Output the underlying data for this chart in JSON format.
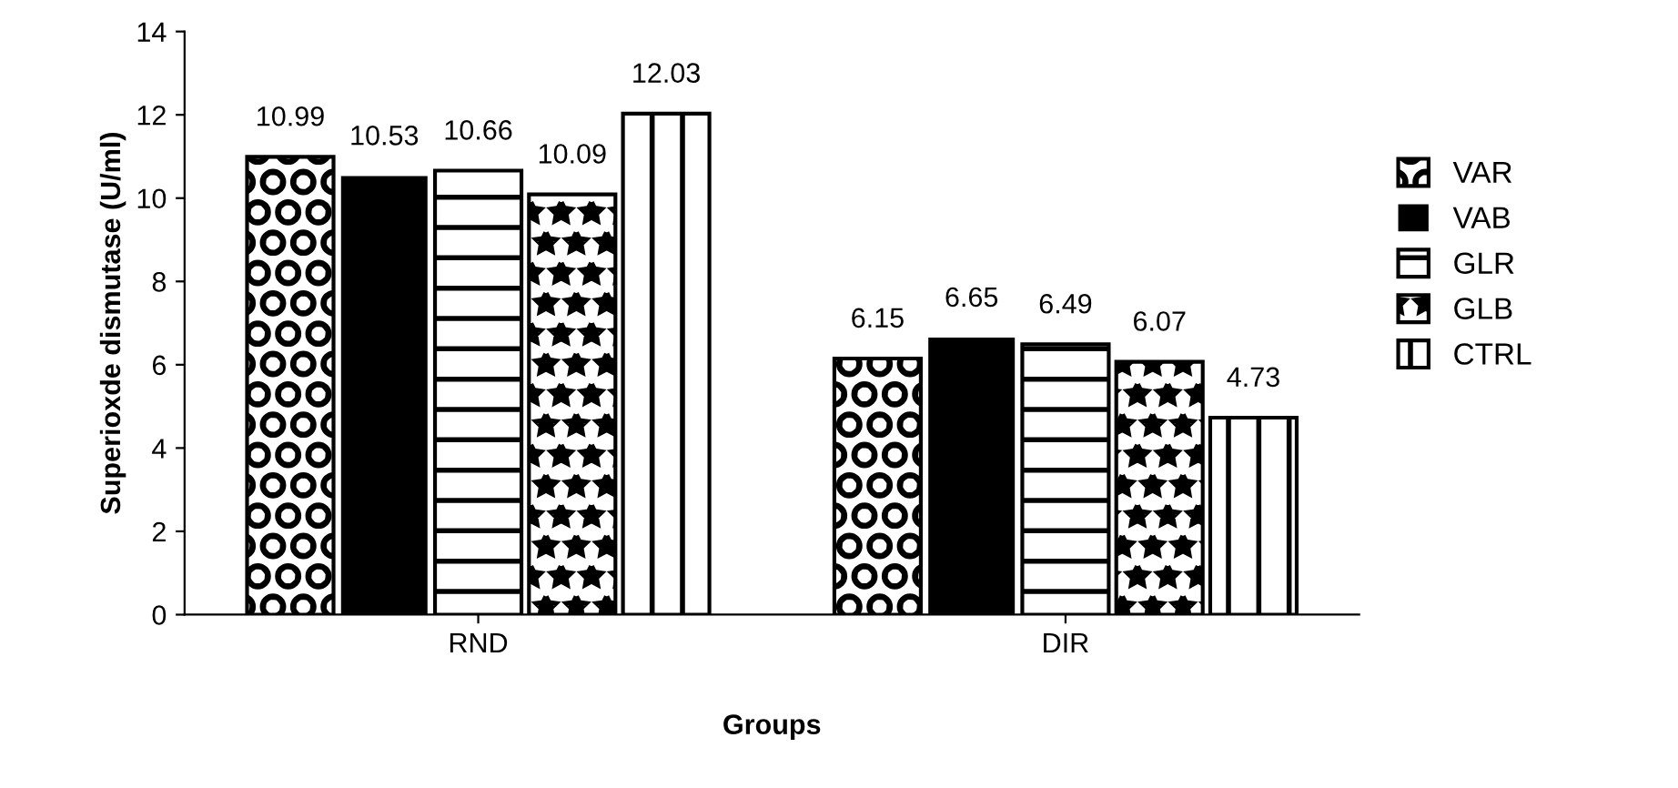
{
  "chart_data": {
    "type": "bar",
    "xlabel": "Groups",
    "ylabel": "Superioxde dismutase (U/ml)",
    "categories": [
      "RND",
      "DIR"
    ],
    "series": [
      {
        "name": "VAR",
        "color": "#000000",
        "values": [
          10.99,
          6.15
        ]
      },
      {
        "name": "VAB",
        "color": "#000000",
        "values": [
          10.53,
          6.65
        ]
      },
      {
        "name": "GLR",
        "color": "#000000",
        "values": [
          10.66,
          6.49
        ]
      },
      {
        "name": "GLB",
        "color": "#000000",
        "values": [
          10.09,
          6.07
        ]
      },
      {
        "name": "CTRL",
        "color": "#000000",
        "values": [
          12.03,
          4.73
        ]
      }
    ],
    "ylim": [
      0,
      14
    ],
    "yticks": [
      0,
      2,
      4,
      6,
      8,
      10,
      12,
      14
    ],
    "data_labels": true,
    "legend": "right",
    "grid": false
  }
}
